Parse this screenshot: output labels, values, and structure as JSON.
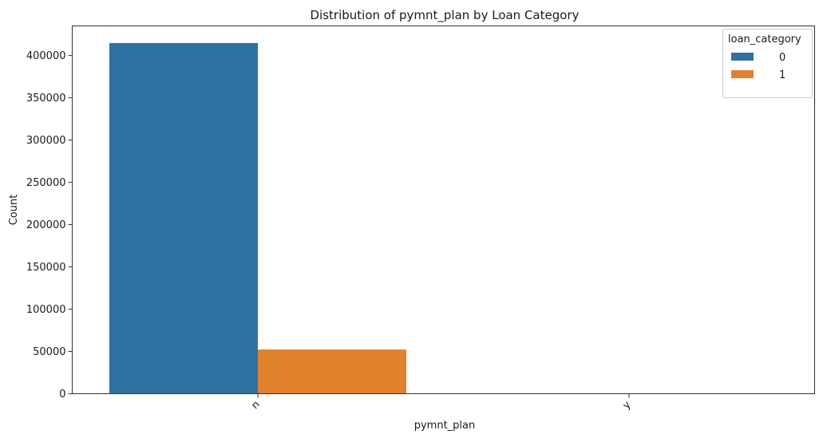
{
  "chart_data": {
    "type": "bar",
    "title": "Distribution of pymnt_plan by Loan Category",
    "xlabel": "pymnt_plan",
    "ylabel": "Count",
    "categories": [
      "n",
      "y"
    ],
    "series": [
      {
        "name": "0",
        "values": [
          414800,
          8
        ],
        "color": "#2e72a4"
      },
      {
        "name": "1",
        "values": [
          52300,
          2
        ],
        "color": "#e1812c"
      }
    ],
    "ylim": [
      0,
      435000
    ],
    "yticks": [
      0,
      50000,
      100000,
      150000,
      200000,
      250000,
      300000,
      350000,
      400000
    ],
    "legend": {
      "title": "loan_category",
      "placement": "top-right"
    },
    "grid": false
  }
}
